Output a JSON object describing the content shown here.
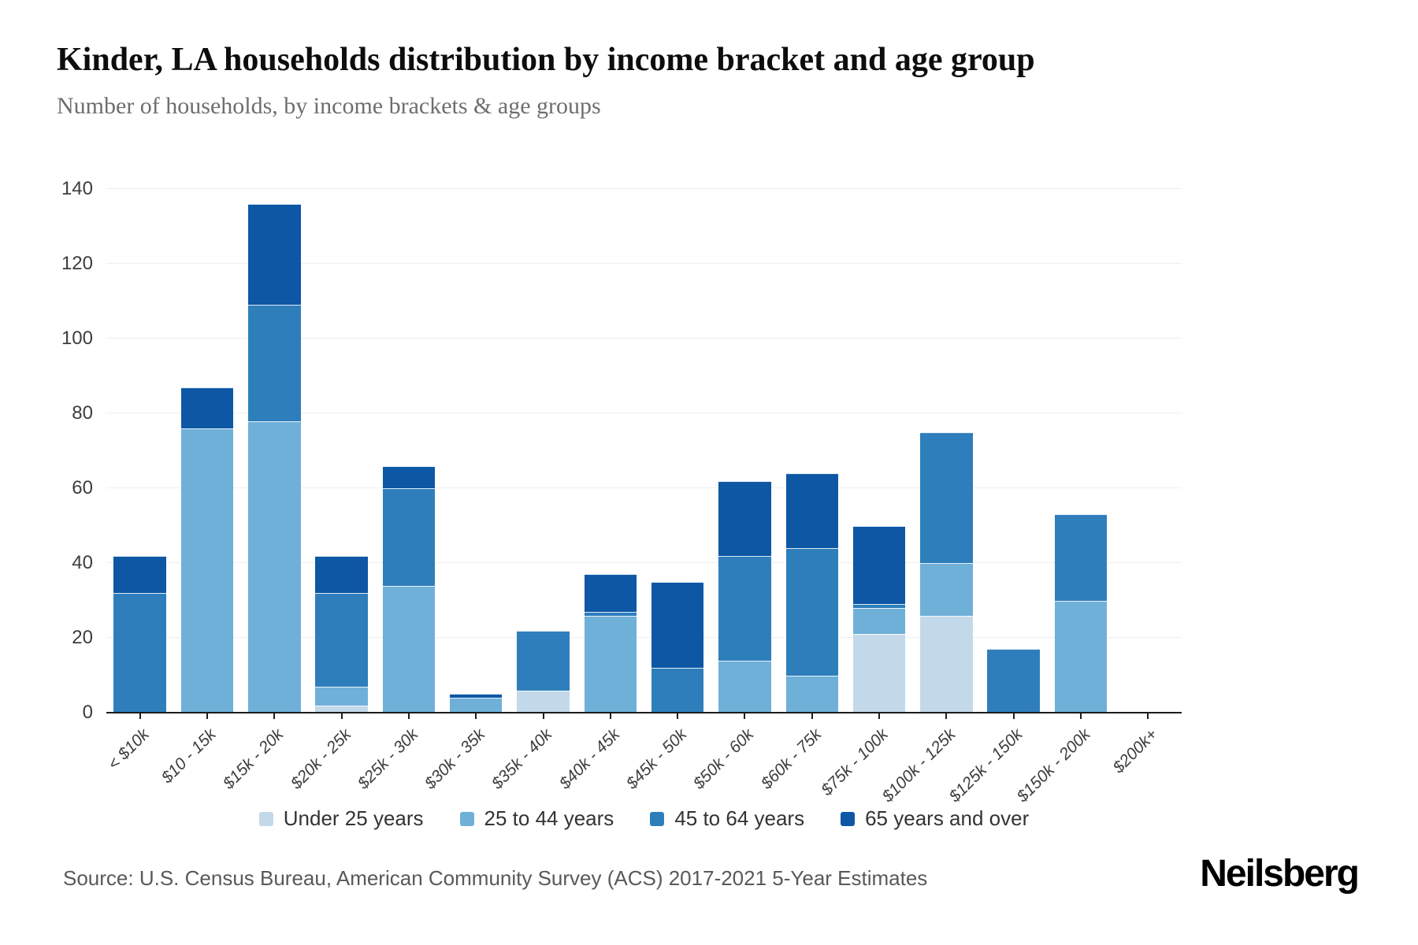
{
  "header": {
    "title": "Kinder, LA households distribution by income bracket and age group",
    "subtitle": "Number of households, by income brackets & age groups"
  },
  "footer": {
    "source": "Source: U.S. Census Bureau, American Community Survey (ACS) 2017-2021 5-Year Estimates",
    "brand": "Neilsberg"
  },
  "colors": {
    "axis": "#1c1c1c",
    "gridline": "#efefef",
    "tick_text": "#3d3d3d",
    "subtitle_text": "#6e6e6e",
    "source_text": "#595959"
  },
  "chart_data": {
    "type": "bar",
    "stacked": true,
    "title": "Kinder, LA households distribution by income bracket and age group",
    "subtitle": "Number of households, by income brackets & age groups",
    "xlabel": "",
    "ylabel": "",
    "ylim": [
      0,
      140
    ],
    "yticks": [
      0,
      20,
      40,
      60,
      80,
      100,
      120,
      140
    ],
    "grid": "horizontal",
    "legend_position": "bottom",
    "categories": [
      "< $10k",
      "$10 - 15k",
      "$15k - 20k",
      "$20k - 25k",
      "$25k - 30k",
      "$30k - 35k",
      "$35k - 40k",
      "$40k - 45k",
      "$45k - 50k",
      "$50k - 60k",
      "$60k - 75k",
      "$75k - 100k",
      "$100k - 125k",
      "$125k - 150k",
      "$150k - 200k",
      "$200k+"
    ],
    "series": [
      {
        "name": "Under 25 years",
        "color": "#c3d9ea",
        "values": [
          0,
          0,
          0,
          2,
          0,
          0,
          6,
          0,
          0,
          0,
          0,
          21,
          26,
          0,
          0,
          0
        ]
      },
      {
        "name": "25 to 44 years",
        "color": "#6fb0d9",
        "values": [
          0,
          76,
          78,
          5,
          34,
          4,
          0,
          26,
          0,
          14,
          10,
          7,
          14,
          0,
          30,
          0
        ]
      },
      {
        "name": "45 to 64 years",
        "color": "#2e7ebc",
        "values": [
          32,
          0,
          31,
          25,
          26,
          0,
          16,
          1,
          12,
          28,
          34,
          1,
          35,
          17,
          23,
          0
        ]
      },
      {
        "name": "65 years and over",
        "color": "#0d57a5",
        "values": [
          10,
          11,
          27,
          10,
          6,
          1,
          0,
          10,
          23,
          20,
          20,
          21,
          0,
          0,
          0,
          0
        ]
      }
    ],
    "totals": [
      42,
      87,
      136,
      42,
      66,
      5,
      22,
      37,
      35,
      62,
      64,
      50,
      75,
      17,
      53,
      0
    ]
  }
}
